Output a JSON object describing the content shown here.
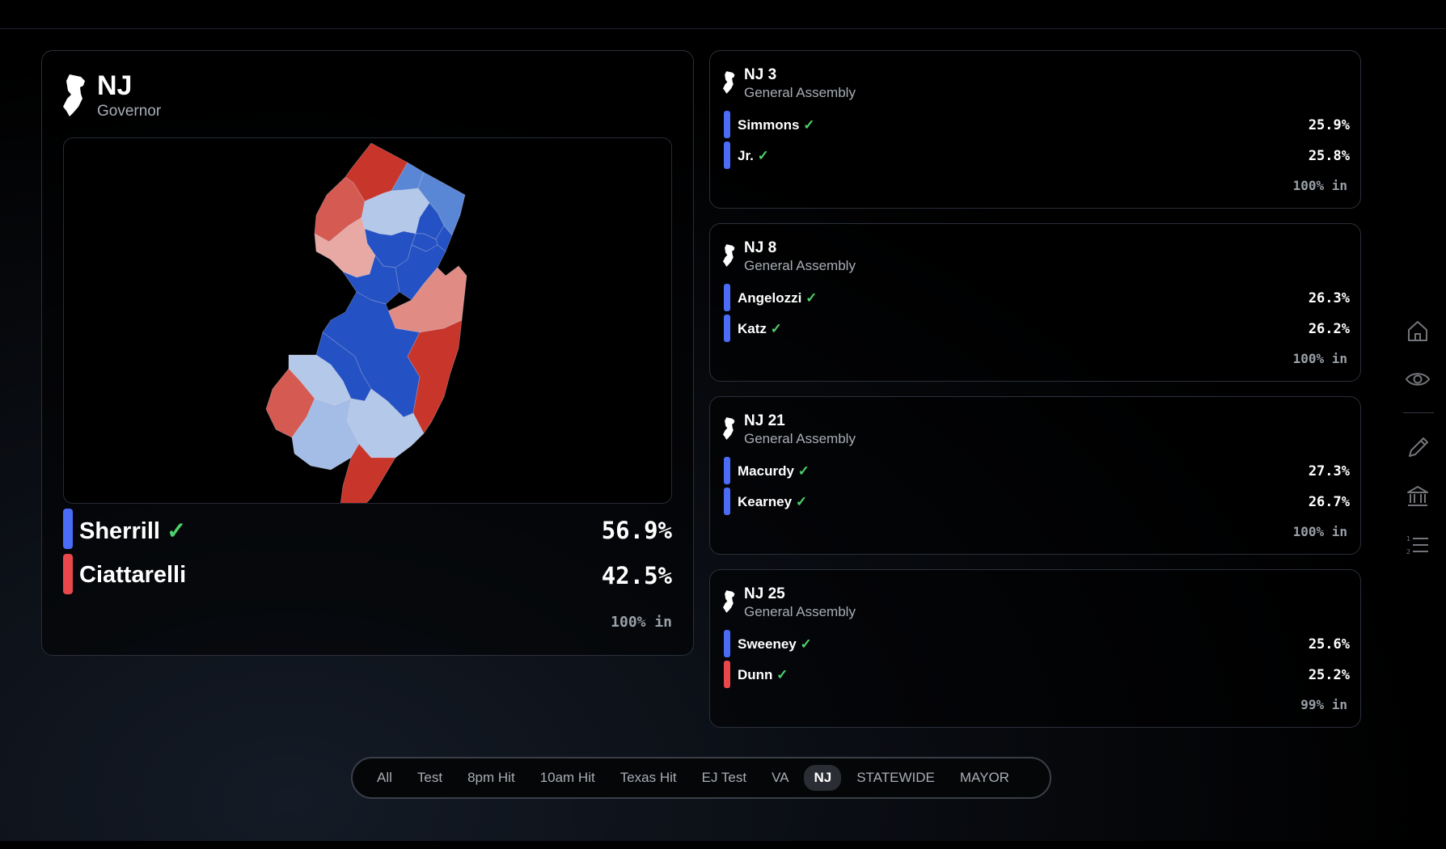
{
  "main": {
    "title": "NJ",
    "subtitle": "Governor",
    "candidates": [
      {
        "name": "Sherrill",
        "check": "✓",
        "pct": "56.9%",
        "color": "#4a6cf7"
      },
      {
        "name": "Ciattarelli",
        "check": "",
        "pct": "42.5%",
        "color": "#e8484b"
      }
    ],
    "reporting": "100% in"
  },
  "races": [
    {
      "title": "NJ 3",
      "subtitle": "General Assembly",
      "candidates": [
        {
          "name": "Simmons",
          "check": "✓",
          "pct": "25.9%",
          "color": "#4a6cf7"
        },
        {
          "name": "Jr.",
          "check": "✓",
          "pct": "25.8%",
          "color": "#4a6cf7"
        }
      ],
      "reporting": "100% in"
    },
    {
      "title": "NJ 8",
      "subtitle": "General Assembly",
      "candidates": [
        {
          "name": "Angelozzi",
          "check": "✓",
          "pct": "26.3%",
          "color": "#4a6cf7"
        },
        {
          "name": "Katz",
          "check": "✓",
          "pct": "26.2%",
          "color": "#4a6cf7"
        }
      ],
      "reporting": "100% in"
    },
    {
      "title": "NJ 21",
      "subtitle": "General Assembly",
      "candidates": [
        {
          "name": "Macurdy",
          "check": "✓",
          "pct": "27.3%",
          "color": "#4a6cf7"
        },
        {
          "name": "Kearney",
          "check": "✓",
          "pct": "26.7%",
          "color": "#4a6cf7"
        }
      ],
      "reporting": "100% in"
    },
    {
      "title": "NJ 25",
      "subtitle": "General Assembly",
      "candidates": [
        {
          "name": "Sweeney",
          "check": "✓",
          "pct": "25.6%",
          "color": "#4a6cf7"
        },
        {
          "name": "Dunn",
          "check": "✓",
          "pct": "25.2%",
          "color": "#e8484b"
        }
      ],
      "reporting": "99% in"
    }
  ],
  "rail": [
    {
      "icon": "home-icon"
    },
    {
      "icon": "eye-icon"
    },
    {
      "icon": "pencil-icon"
    },
    {
      "icon": "bank-icon"
    },
    {
      "icon": "numbered-list-icon"
    }
  ],
  "tabs": [
    {
      "label": "All",
      "active": false
    },
    {
      "label": "Test",
      "active": false
    },
    {
      "label": "8pm Hit",
      "active": false
    },
    {
      "label": "10am Hit",
      "active": false
    },
    {
      "label": "Texas Hit",
      "active": false
    },
    {
      "label": "EJ Test",
      "active": false
    },
    {
      "label": "VA",
      "active": false
    },
    {
      "label": "NJ",
      "active": true
    },
    {
      "label": "STATEWIDE",
      "active": false
    },
    {
      "label": "MAYOR",
      "active": false
    }
  ],
  "colors": {
    "dem_strong": "#2451c4",
    "dem_medium": "#5a86d6",
    "dem_light": "#b4c8ea",
    "rep_strong": "#c8352b",
    "rep_medium": "#d45a52",
    "rep_light": "#e8a9a5",
    "check": "#4ed16a"
  }
}
